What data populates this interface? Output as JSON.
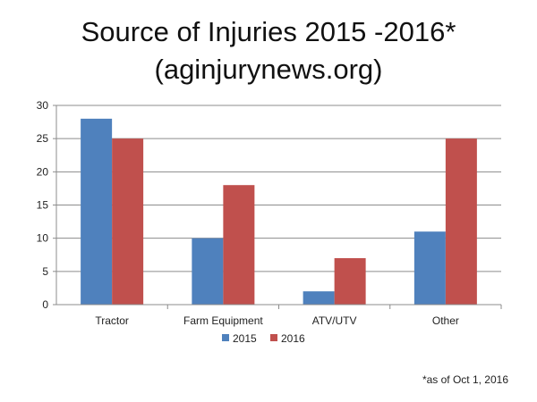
{
  "chart_data": {
    "type": "bar",
    "title_line1": "Source of Injuries 2015 -2016*",
    "title_line2": "(aginjurynews.org)",
    "categories": [
      "Tractor",
      "Farm Equipment",
      "ATV/UTV",
      "Other"
    ],
    "series": [
      {
        "name": "2015",
        "values": [
          28,
          10,
          2,
          11
        ],
        "color": "#4F81BD"
      },
      {
        "name": "2016",
        "values": [
          25,
          18,
          7,
          25
        ],
        "color": "#C0504D"
      }
    ],
    "xlabel": "",
    "ylabel": "",
    "ylim": [
      0,
      30
    ],
    "yticks": [
      "0",
      "5",
      "10",
      "15",
      "20",
      "25",
      "30"
    ],
    "grid": true,
    "legend_position": "bottom",
    "footnote": "*as of Oct 1, 2016"
  }
}
